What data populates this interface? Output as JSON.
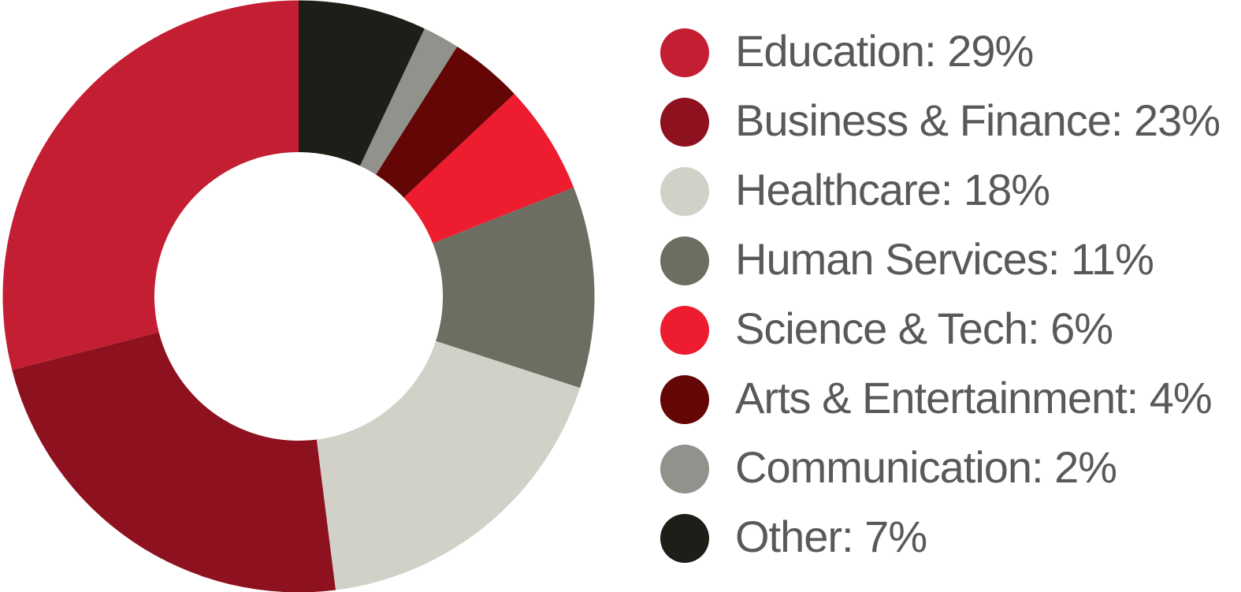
{
  "chart_data": {
    "type": "pie",
    "subtype": "donut",
    "categories": [
      "Education",
      "Business & Finance",
      "Healthcare",
      "Human Services",
      "Science & Tech",
      "Arts & Entertainment",
      "Communication",
      "Other"
    ],
    "values": [
      29,
      23,
      18,
      11,
      6,
      4,
      2,
      7
    ],
    "unit": "%",
    "colors": [
      "#C41E33",
      "#8E1120",
      "#D2D1C8",
      "#6D6E62",
      "#EE1C2F",
      "#650606",
      "#90928B",
      "#1D1E18"
    ],
    "start_angle_deg": 90,
    "direction": "counterclockwise",
    "inner_radius_ratio": 0.4875,
    "legend_position": "right",
    "background": "#FFFFFF",
    "text_color": "#58595B"
  },
  "legend": {
    "items": [
      {
        "label": "Education: 29%"
      },
      {
        "label": "Business & Finance: 23%"
      },
      {
        "label": "Healthcare: 18%"
      },
      {
        "label": "Human Services: 11%"
      },
      {
        "label": "Science & Tech: 6%"
      },
      {
        "label": "Arts & Entertainment: 4%"
      },
      {
        "label": "Communication: 2%"
      },
      {
        "label": "Other: 7%"
      }
    ]
  }
}
